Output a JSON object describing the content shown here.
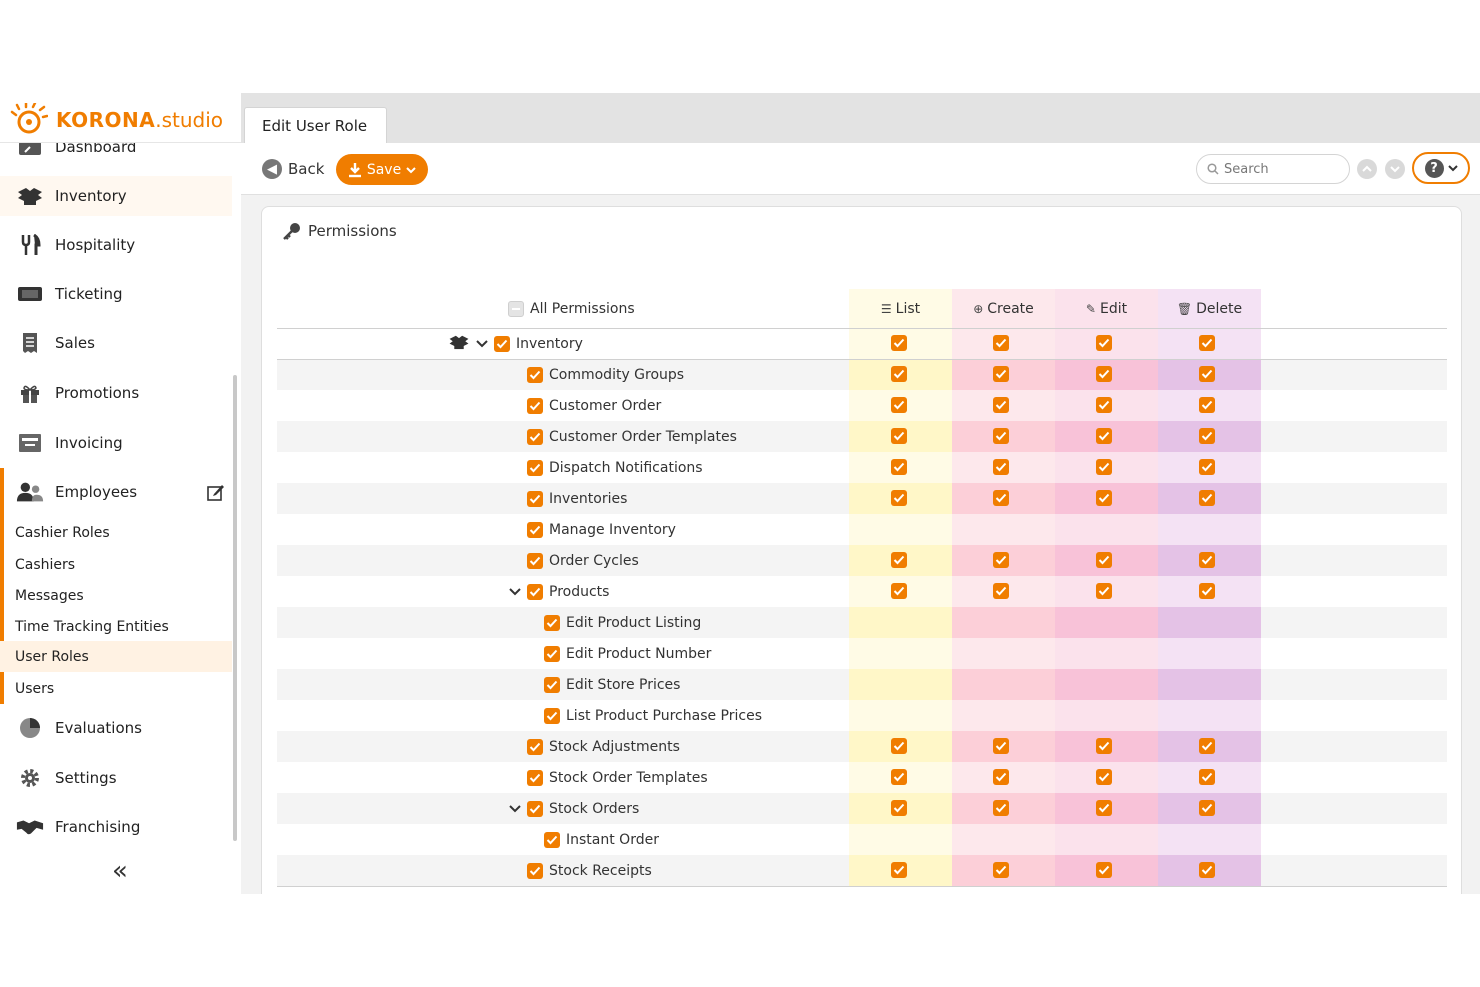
{
  "brand": {
    "name_bold": "KORONA",
    "name_rest": ".studio"
  },
  "sidebar": {
    "items": [
      {
        "label": "Dashboard",
        "icon": "dashboard-icon"
      },
      {
        "label": "Inventory",
        "icon": "inventory-icon"
      },
      {
        "label": "Hospitality",
        "icon": "hospitality-icon"
      },
      {
        "label": "Ticketing",
        "icon": "ticket-icon"
      },
      {
        "label": "Sales",
        "icon": "receipt-icon"
      },
      {
        "label": "Promotions",
        "icon": "gift-icon"
      },
      {
        "label": "Invoicing",
        "icon": "invoice-icon"
      },
      {
        "label": "Employees",
        "icon": "users-icon"
      },
      {
        "label": "Evaluations",
        "icon": "pie-chart-icon"
      },
      {
        "label": "Settings",
        "icon": "gear-icon"
      },
      {
        "label": "Franchising",
        "icon": "handshake-icon"
      }
    ],
    "employees_sub": [
      "Cashier Roles",
      "Cashiers",
      "Messages",
      "Time Tracking Entities",
      "User Roles",
      "Users"
    ],
    "active_sub": "User Roles"
  },
  "tab": {
    "label": "Edit User Role"
  },
  "toolbar": {
    "back_label": "Back",
    "save_label": "Save",
    "search_placeholder": "Search"
  },
  "panel": {
    "title": "Permissions",
    "all_permissions_label": "All Permissions",
    "columns": [
      "List",
      "Create",
      "Edit",
      "Delete"
    ],
    "colors": {
      "list": "#fffbe6",
      "list_alt": "#fff7c8",
      "create": "#fde8ec",
      "create_alt": "#fccfd8",
      "edit": "#fbe2ec",
      "edit_alt": "#f8c2d8",
      "delete": "#f4e2f4",
      "delete_alt": "#e4c2e6"
    },
    "rows": [
      {
        "label": "Inventory",
        "level": 0,
        "expanded": true,
        "perms": [
          true,
          true,
          true,
          true
        ]
      },
      {
        "label": "Commodity Groups",
        "level": 1,
        "perms": [
          true,
          true,
          true,
          true
        ]
      },
      {
        "label": "Customer Order",
        "level": 1,
        "perms": [
          true,
          true,
          true,
          true
        ]
      },
      {
        "label": "Customer Order Templates",
        "level": 1,
        "perms": [
          true,
          true,
          true,
          true
        ]
      },
      {
        "label": "Dispatch Notifications",
        "level": 1,
        "perms": [
          true,
          true,
          true,
          true
        ]
      },
      {
        "label": "Inventories",
        "level": 1,
        "perms": [
          true,
          true,
          true,
          true
        ]
      },
      {
        "label": "Manage Inventory",
        "level": 1,
        "perms": [
          false,
          false,
          false,
          false
        ]
      },
      {
        "label": "Order Cycles",
        "level": 1,
        "perms": [
          true,
          true,
          true,
          true
        ]
      },
      {
        "label": "Products",
        "level": 1,
        "expanded": true,
        "perms": [
          true,
          true,
          true,
          true
        ]
      },
      {
        "label": "Edit Product Listing",
        "level": 2,
        "perms": [
          false,
          false,
          false,
          false
        ]
      },
      {
        "label": "Edit Product Number",
        "level": 2,
        "perms": [
          false,
          false,
          false,
          false
        ]
      },
      {
        "label": "Edit Store Prices",
        "level": 2,
        "perms": [
          false,
          false,
          false,
          false
        ]
      },
      {
        "label": "List Product Purchase Prices",
        "level": 2,
        "perms": [
          false,
          false,
          false,
          false
        ]
      },
      {
        "label": "Stock Adjustments",
        "level": 1,
        "perms": [
          true,
          true,
          true,
          true
        ]
      },
      {
        "label": "Stock Order Templates",
        "level": 1,
        "perms": [
          true,
          true,
          true,
          true
        ]
      },
      {
        "label": "Stock Orders",
        "level": 1,
        "expanded": true,
        "perms": [
          true,
          true,
          true,
          true
        ]
      },
      {
        "label": "Instant Order",
        "level": 2,
        "perms": [
          false,
          false,
          false,
          false
        ]
      },
      {
        "label": "Stock Receipts",
        "level": 1,
        "perms": [
          true,
          true,
          true,
          true
        ]
      }
    ]
  }
}
